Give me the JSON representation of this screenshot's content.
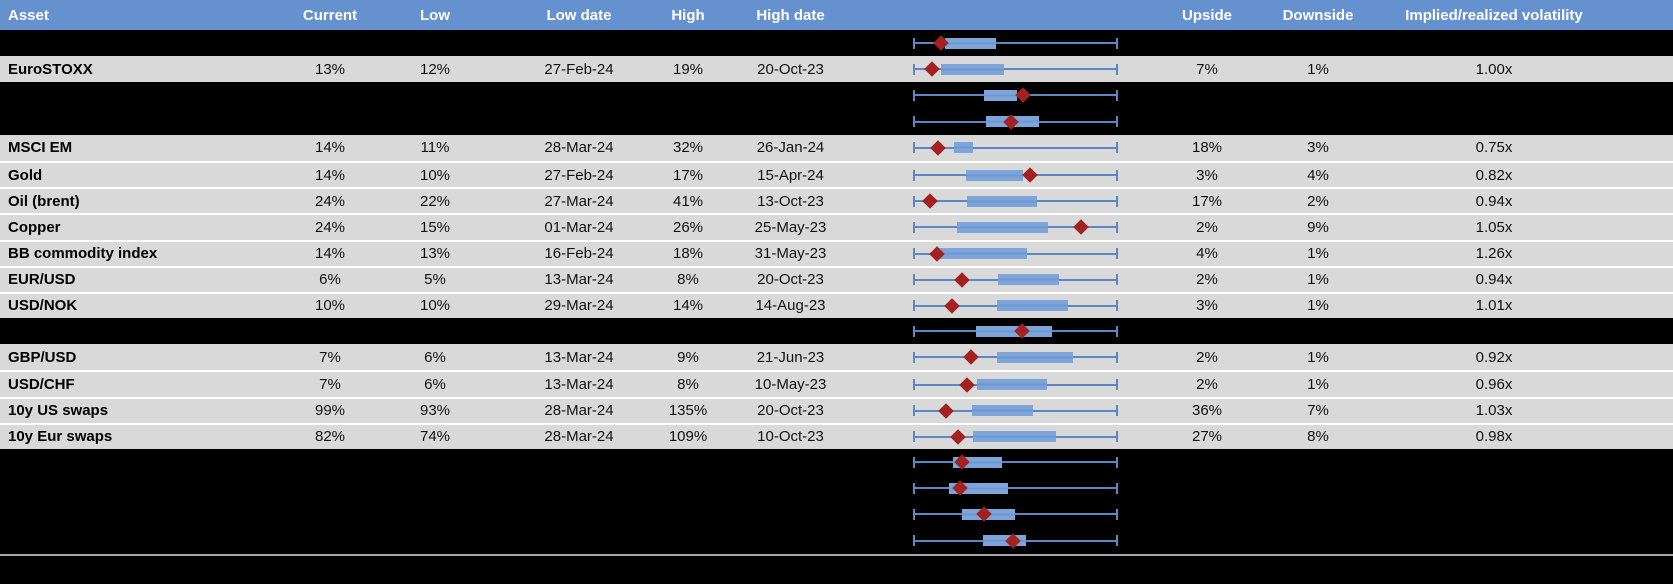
{
  "colors": {
    "header_bg": "#6691cf",
    "header_text": "#ffffff",
    "row_bg": "#d9d9d9",
    "hidden_row_bg": "#000000",
    "gridline": "#ffffff",
    "whisker_blue": "#5b87c5",
    "box_blue": "#7da5d9",
    "marker_red": "#a32121",
    "divider_gray": "#a6a6a6"
  },
  "header": {
    "asset": "Asset",
    "current": "Current",
    "low": "Low",
    "low_date": "Low date",
    "high": "High",
    "high_date": "High date",
    "chart": "",
    "upside": "Upside",
    "downside": "Downside",
    "ratio": "Implied/realized volatility",
    "filler": ""
  },
  "rows": [
    {
      "type": "hidden",
      "box": {
        "left_pct": 15.6,
        "width_pct": 25.0,
        "marker_pct": 13.5
      }
    },
    {
      "type": "data",
      "asset": "EuroSTOXX",
      "current": "13%",
      "low": "12%",
      "low_date": "27-Feb-24",
      "high": "19%",
      "high_date": "20-Oct-23",
      "upside": "7%",
      "downside": "1%",
      "ratio": "1.00x",
      "box": {
        "left_pct": 13.5,
        "width_pct": 31.1,
        "marker_pct": 9.5
      }
    },
    {
      "type": "hidden",
      "box": {
        "left_pct": 34.8,
        "width_pct": 16.1,
        "marker_pct": 53.8
      }
    },
    {
      "type": "hidden",
      "box": {
        "left_pct": 35.6,
        "width_pct": 25.9,
        "marker_pct": 47.7
      }
    },
    {
      "type": "data",
      "asset": "MSCI EM",
      "current": "14%",
      "low": "11%",
      "low_date": "28-Mar-24",
      "high": "32%",
      "high_date": "26-Jan-24",
      "upside": "18%",
      "downside": "3%",
      "ratio": "0.75x",
      "box": {
        "left_pct": 20.2,
        "width_pct": 9.2,
        "marker_pct": 12.0
      }
    },
    {
      "type": "data",
      "asset": "Gold",
      "current": "14%",
      "low": "10%",
      "low_date": "27-Feb-24",
      "high": "17%",
      "high_date": "15-Apr-24",
      "upside": "3%",
      "downside": "4%",
      "ratio": "0.82x",
      "box": {
        "left_pct": 25.9,
        "width_pct": 27.9,
        "marker_pct": 57.2
      }
    },
    {
      "type": "data",
      "asset": "Oil (brent)",
      "current": "24%",
      "low": "22%",
      "low_date": "27-Mar-24",
      "high": "41%",
      "high_date": "13-Oct-23",
      "upside": "17%",
      "downside": "2%",
      "ratio": "0.94x",
      "box": {
        "left_pct": 26.2,
        "width_pct": 34.4,
        "marker_pct": 8.3
      }
    },
    {
      "type": "data",
      "asset": "Copper",
      "current": "24%",
      "low": "15%",
      "low_date": "01-Mar-24",
      "high": "26%",
      "high_date": "25-May-23",
      "upside": "2%",
      "downside": "9%",
      "ratio": "1.05x",
      "box": {
        "left_pct": 21.3,
        "width_pct": 44.7,
        "marker_pct": 82.0
      }
    },
    {
      "type": "data",
      "asset": "BB commodity index",
      "current": "14%",
      "low": "13%",
      "low_date": "16-Feb-24",
      "high": "18%",
      "high_date": "31-May-23",
      "upside": "4%",
      "downside": "1%",
      "ratio": "1.26x",
      "box": {
        "left_pct": 11.9,
        "width_pct": 43.5,
        "marker_pct": 11.9
      }
    },
    {
      "type": "data",
      "asset": "EUR/USD",
      "current": "6%",
      "low": "5%",
      "low_date": "13-Mar-24",
      "high": "8%",
      "high_date": "20-Oct-23",
      "upside": "2%",
      "downside": "1%",
      "ratio": "0.94x",
      "box": {
        "left_pct": 41.3,
        "width_pct": 30.1,
        "marker_pct": 24.1
      }
    },
    {
      "type": "data",
      "asset": "USD/NOK",
      "current": "10%",
      "low": "10%",
      "low_date": "29-Mar-24",
      "high": "14%",
      "high_date": "14-Aug-23",
      "upside": "3%",
      "downside": "1%",
      "ratio": "1.01x",
      "box": {
        "left_pct": 40.8,
        "width_pct": 35.0,
        "marker_pct": 18.9
      }
    },
    {
      "type": "hidden",
      "box": {
        "left_pct": 30.7,
        "width_pct": 37.0,
        "marker_pct": 53.0
      }
    },
    {
      "type": "data",
      "asset": "GBP/USD",
      "current": "7%",
      "low": "6%",
      "low_date": "13-Mar-24",
      "high": "9%",
      "high_date": "21-Jun-23",
      "upside": "2%",
      "downside": "1%",
      "ratio": "0.92x",
      "box": {
        "left_pct": 40.8,
        "width_pct": 37.1,
        "marker_pct": 28.1
      }
    },
    {
      "type": "data",
      "asset": "USD/CHF",
      "current": "7%",
      "low": "6%",
      "low_date": "13-Mar-24",
      "high": "8%",
      "high_date": "10-May-23",
      "upside": "2%",
      "downside": "1%",
      "ratio": "0.96x",
      "box": {
        "left_pct": 31.1,
        "width_pct": 34.1,
        "marker_pct": 26.2
      }
    },
    {
      "type": "data",
      "asset": "10y US swaps",
      "current": "99%",
      "low": "93%",
      "low_date": "28-Mar-24",
      "high": "135%",
      "high_date": "20-Oct-23",
      "upside": "36%",
      "downside": "7%",
      "ratio": "1.03x",
      "box": {
        "left_pct": 28.6,
        "width_pct": 29.8,
        "marker_pct": 16.1
      }
    },
    {
      "type": "data",
      "asset": "10y Eur swaps",
      "current": "82%",
      "low": "74%",
      "low_date": "28-Mar-24",
      "high": "109%",
      "high_date": "10-Oct-23",
      "upside": "27%",
      "downside": "8%",
      "ratio": "0.98x",
      "box": {
        "left_pct": 29.1,
        "width_pct": 40.5,
        "marker_pct": 22.1
      }
    },
    {
      "type": "hidden",
      "box": {
        "left_pct": 19.7,
        "width_pct": 23.6,
        "marker_pct": 24.1
      }
    },
    {
      "type": "hidden",
      "box": {
        "left_pct": 17.7,
        "width_pct": 28.8,
        "marker_pct": 22.9
      }
    },
    {
      "type": "hidden",
      "box": {
        "left_pct": 23.7,
        "width_pct": 26.1,
        "marker_pct": 34.8
      }
    },
    {
      "type": "hidden",
      "box": {
        "left_pct": 34.3,
        "width_pct": 20.7,
        "marker_pct": 48.9
      }
    }
  ]
}
